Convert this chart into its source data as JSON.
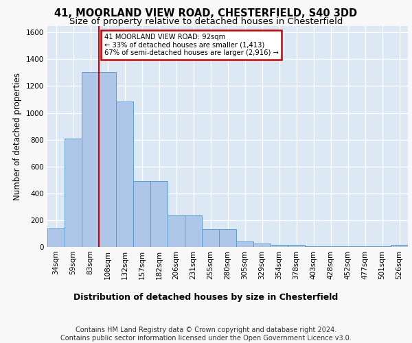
{
  "title1": "41, MOORLAND VIEW ROAD, CHESTERFIELD, S40 3DD",
  "title2": "Size of property relative to detached houses in Chesterfield",
  "xlabel": "Distribution of detached houses by size in Chesterfield",
  "ylabel": "Number of detached properties",
  "footer": "Contains HM Land Registry data © Crown copyright and database right 2024.\nContains public sector information licensed under the Open Government Licence v3.0.",
  "bin_labels": [
    "34sqm",
    "59sqm",
    "83sqm",
    "108sqm",
    "132sqm",
    "157sqm",
    "182sqm",
    "206sqm",
    "231sqm",
    "255sqm",
    "280sqm",
    "305sqm",
    "329sqm",
    "354sqm",
    "378sqm",
    "403sqm",
    "428sqm",
    "452sqm",
    "477sqm",
    "501sqm",
    "526sqm"
  ],
  "bar_heights": [
    140,
    810,
    1305,
    1305,
    1085,
    490,
    490,
    235,
    235,
    135,
    135,
    40,
    25,
    15,
    15,
    5,
    5,
    5,
    5,
    5,
    15
  ],
  "bar_color": "#aec6e8",
  "bar_edge_color": "#5a9fd4",
  "red_line_index": 3,
  "annotation_text": "41 MOORLAND VIEW ROAD: 92sqm\n← 33% of detached houses are smaller (1,413)\n67% of semi-detached houses are larger (2,916) →",
  "annotation_box_color": "#ffffff",
  "annotation_box_edge": "#cc0000",
  "ylim": [
    0,
    1650
  ],
  "yticks": [
    0,
    200,
    400,
    600,
    800,
    1000,
    1200,
    1400,
    1600
  ],
  "background_color": "#dde8f5",
  "grid_color": "#ffffff",
  "title1_fontsize": 10.5,
  "title2_fontsize": 9.5,
  "axis_label_fontsize": 8.5,
  "tick_fontsize": 7.5,
  "footer_fontsize": 7
}
